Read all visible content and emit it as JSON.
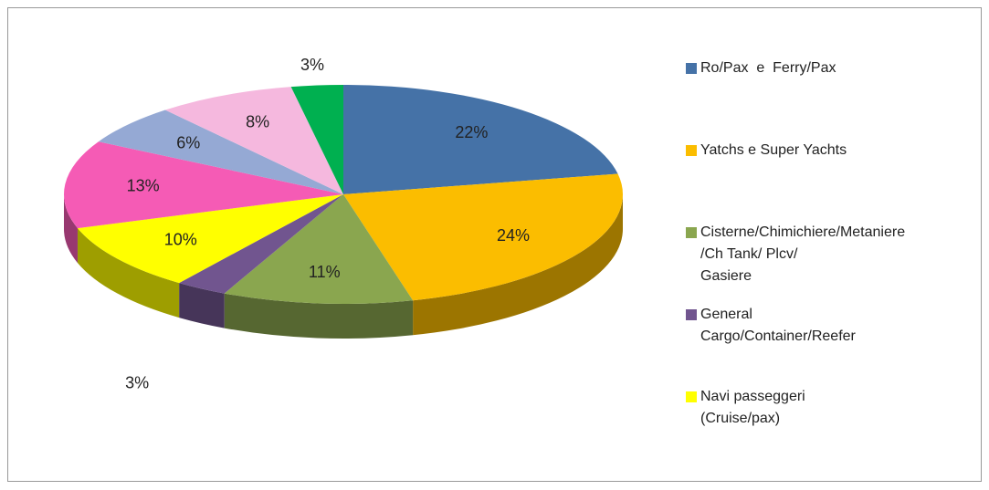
{
  "chart_data": {
    "type": "pie",
    "categories": [
      "Ro/Pax  e  Ferry/Pax",
      "Yatchs e Super Yachts",
      "Cisterne/Chimichiere/Metaniere /Ch Tank/ Plcv/ Gasiere",
      "General Cargo/Container/Reefer",
      "Navi passeggeri (Cruise/pax)",
      null,
      null,
      null,
      null
    ],
    "values": [
      22,
      24,
      11,
      3,
      10,
      13,
      6,
      8,
      3
    ],
    "value_labels": [
      "22%",
      "24%",
      "11%",
      "3%",
      "10%",
      "13%",
      "6%",
      "8%",
      "3%"
    ],
    "colors": [
      "#4572a7",
      "#fbbd00",
      "#8aa64f",
      "#71558f",
      "#ffff00",
      "#f55bb5",
      "#95a9d4",
      "#f5b8de",
      "#00b050"
    ],
    "legend": "right"
  }
}
